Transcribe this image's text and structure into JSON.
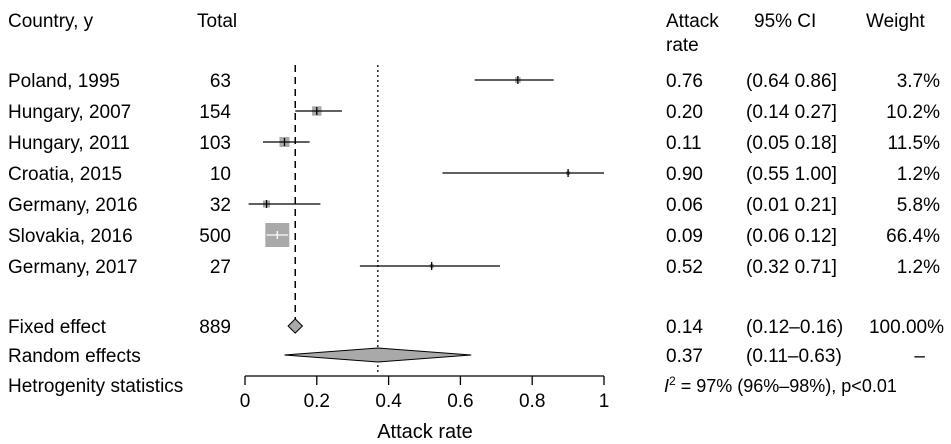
{
  "chart_data": {
    "type": "forest",
    "headers": {
      "study": "Country, y",
      "total": "Total",
      "rate_line1": "Attack",
      "rate_line2": "rate",
      "ci": "95% CI",
      "weight": "Weight"
    },
    "studies": [
      {
        "label": "Poland, 1995",
        "total": "63",
        "rate": 0.76,
        "lo": 0.64,
        "hi": 0.86,
        "rate_text": "0.76",
        "ci_text": "(0.64  0.86]",
        "weight_text": "3.7%",
        "weight": 3.7
      },
      {
        "label": "Hungary, 2007",
        "total": "154",
        "rate": 0.2,
        "lo": 0.14,
        "hi": 0.27,
        "rate_text": "0.20",
        "ci_text": "(0.14  0.27]",
        "weight_text": "10.2%",
        "weight": 10.2
      },
      {
        "label": "Hungary, 2011",
        "total": "103",
        "rate": 0.11,
        "lo": 0.05,
        "hi": 0.18,
        "rate_text": "0.11",
        "ci_text": "(0.05  0.18]",
        "weight_text": "11.5%",
        "weight": 11.5
      },
      {
        "label": "Croatia, 2015",
        "total": "10",
        "rate": 0.9,
        "lo": 0.55,
        "hi": 1.0,
        "rate_text": "0.90",
        "ci_text": "(0.55  1.00]",
        "weight_text": "1.2%",
        "weight": 1.2
      },
      {
        "label": "Germany, 2016",
        "total": "32",
        "rate": 0.06,
        "lo": 0.01,
        "hi": 0.21,
        "rate_text": "0.06",
        "ci_text": "(0.01  0.21]",
        "weight_text": "5.8%",
        "weight": 5.8
      },
      {
        "label": "Slovakia, 2016",
        "total": "500",
        "rate": 0.09,
        "lo": 0.06,
        "hi": 0.12,
        "rate_text": "0.09",
        "ci_text": "(0.06  0.12]",
        "weight_text": "66.4%",
        "weight": 66.4
      },
      {
        "label": "Germany, 2017",
        "total": "27",
        "rate": 0.52,
        "lo": 0.32,
        "hi": 0.71,
        "rate_text": "0.52",
        "ci_text": "(0.32  0.71]",
        "weight_text": "1.2%",
        "weight": 1.2
      }
    ],
    "fixed": {
      "label": "Fixed effect",
      "total": "889",
      "rate": 0.14,
      "lo": 0.12,
      "hi": 0.16,
      "rate_text": "0.14",
      "ci_text": "(0.12–0.16)",
      "weight_text": "100.00%"
    },
    "random": {
      "label": "Random effects",
      "rate": 0.37,
      "lo": 0.11,
      "hi": 0.63,
      "rate_text": "0.37",
      "ci_text": "(0.11–0.63)",
      "weight_text": "–"
    },
    "heterogeneity": {
      "label": "Hetrogenity statistics",
      "i_symbol": "I",
      "sup": "2",
      "rest": " = 97% (96%–98%), p<0.01"
    },
    "xaxis": {
      "label": "Attack rate",
      "range": [
        0,
        1
      ],
      "ticks": [
        0,
        0.2,
        0.4,
        0.6,
        0.8,
        1
      ],
      "tick_labels": [
        "0",
        "0.2",
        "0.4",
        "0.6",
        "0.8",
        "1"
      ]
    },
    "reference_lines": {
      "fixed": 0.14,
      "random": 0.37
    },
    "colors": {
      "box": "#a9a9a9",
      "diamond": "#a9a9a9",
      "ink": "#000000"
    }
  }
}
